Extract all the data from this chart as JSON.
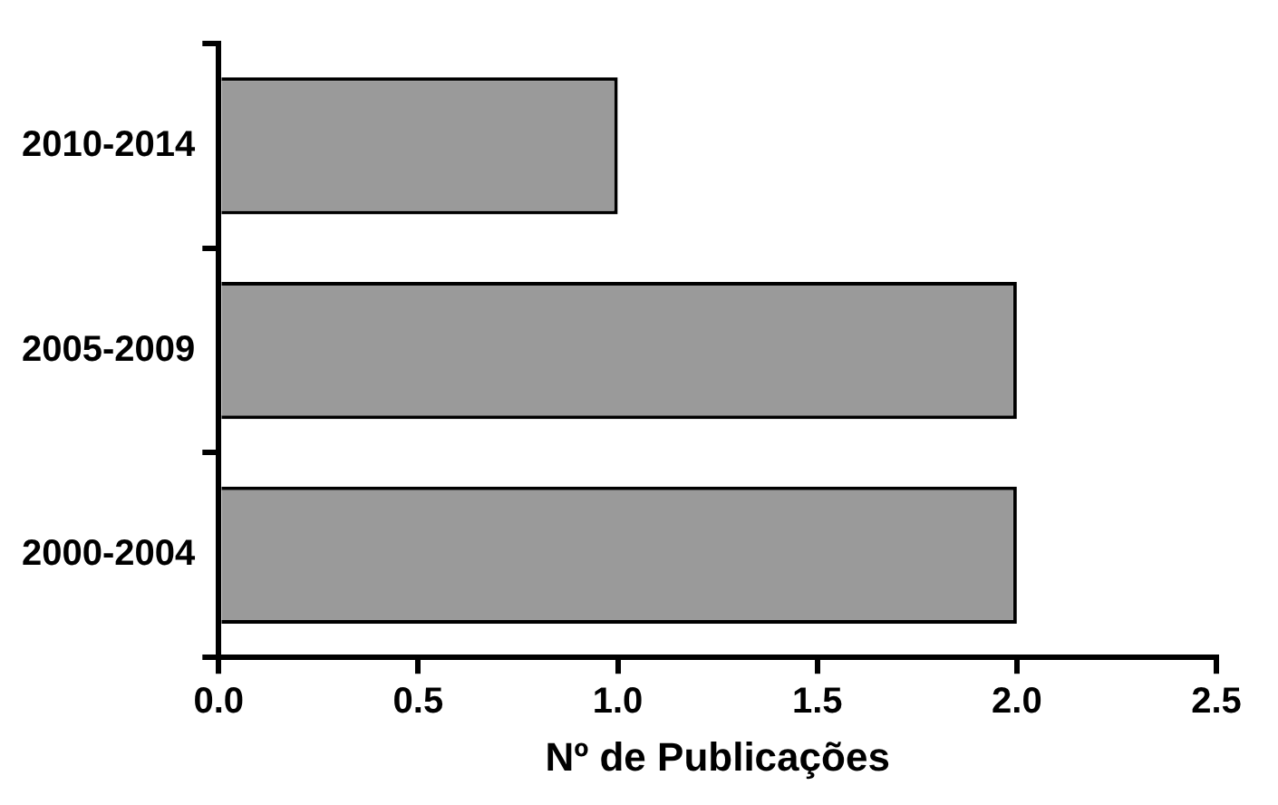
{
  "chart_data": {
    "type": "bar",
    "orientation": "horizontal",
    "xlabel": "Nº de Publicações",
    "categories": [
      "2010-2014",
      "2005-2009",
      "2000-2004"
    ],
    "values": [
      1,
      2,
      2
    ],
    "color": "#9a9a9a",
    "xlim": [
      0,
      2.5
    ],
    "xticks": [
      {
        "value": 0,
        "label": "0.0"
      },
      {
        "value": 0.5,
        "label": "0.5"
      },
      {
        "value": 1,
        "label": "1.0"
      },
      {
        "value": 1.5,
        "label": "1.5"
      },
      {
        "value": 2,
        "label": "2.0"
      },
      {
        "value": 2.5,
        "label": "2.5"
      }
    ],
    "grid": false,
    "legend": false
  }
}
